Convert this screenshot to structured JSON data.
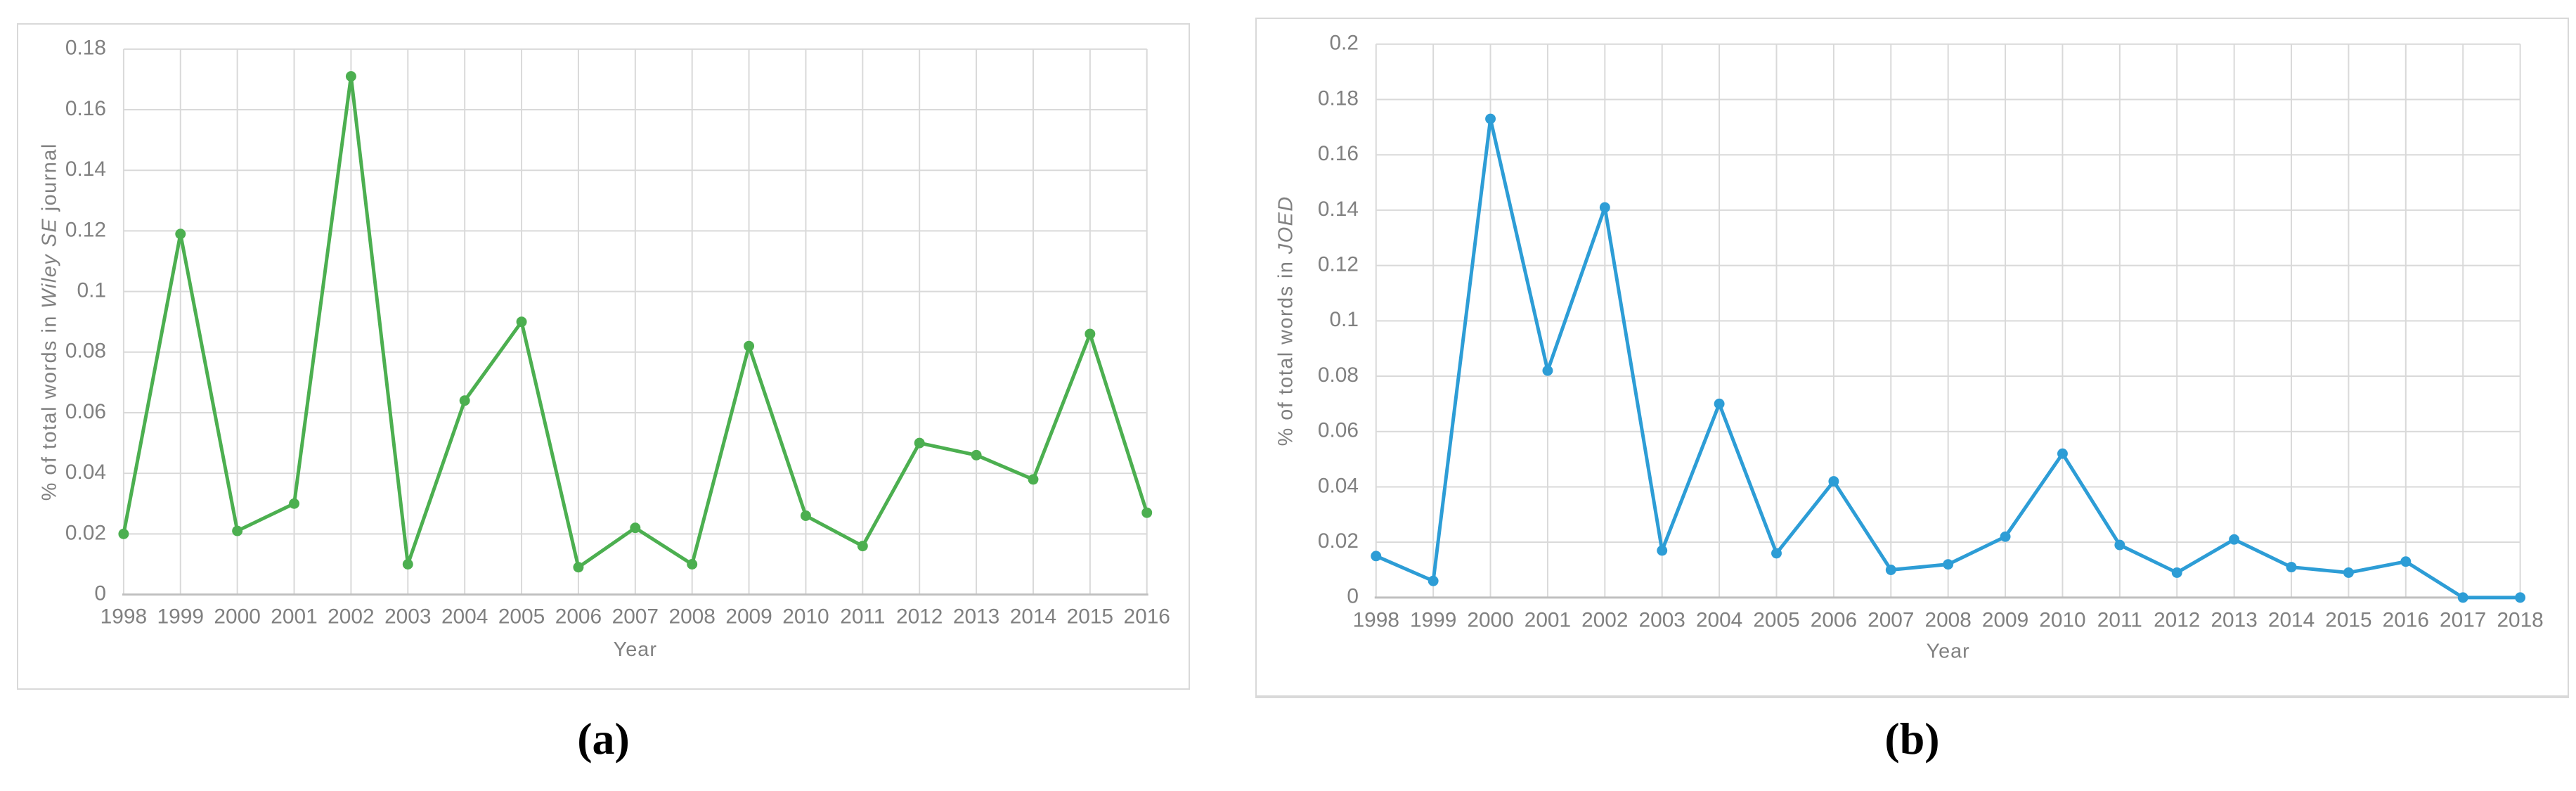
{
  "figure": {
    "captions": {
      "a": "(a)",
      "b": "(b)"
    }
  },
  "style": {
    "background": "#FFFFFF",
    "panel_border_color": "#D9D9D9",
    "grid_color": "#D9D9D9",
    "axis_color": "#BFBFBF",
    "label_color": "#808080",
    "green_series": "#4CAF50",
    "blue_series": "#2D9DD6"
  },
  "chart_data": [
    {
      "id": "a",
      "type": "line",
      "title": "",
      "ylabel_parts": {
        "prefix": "% of total words in ",
        "italic": "Wiley SE",
        "suffix": " journal"
      },
      "xlabel": "Year",
      "categories": [
        "1998",
        "1999",
        "2000",
        "2001",
        "2002",
        "2003",
        "2004",
        "2005",
        "2006",
        "2007",
        "2008",
        "2009",
        "2010",
        "2011",
        "2012",
        "2013",
        "2014",
        "2015",
        "2016"
      ],
      "values": [
        0.02,
        0.119,
        0.021,
        0.03,
        0.171,
        0.01,
        0.064,
        0.09,
        0.009,
        0.022,
        0.01,
        0.082,
        0.026,
        0.016,
        0.05,
        0.046,
        0.038,
        0.086,
        0.027
      ],
      "ylim": [
        0,
        0.18
      ],
      "ytick_labels": [
        "0",
        "0.02",
        "0.04",
        "0.06",
        "0.08",
        "0.1",
        "0.12",
        "0.14",
        "0.16",
        "0.18"
      ],
      "line_color": "#4CAF50",
      "marker": "circle",
      "grid": "both",
      "legend": "none"
    },
    {
      "id": "b",
      "type": "line",
      "title": "",
      "ylabel_parts": {
        "prefix": "% of total words in ",
        "italic": "JOED",
        "suffix": ""
      },
      "xlabel": "Year",
      "categories": [
        "1998",
        "1999",
        "2000",
        "2001",
        "2002",
        "2003",
        "2004",
        "2005",
        "2006",
        "2007",
        "2008",
        "2009",
        "2010",
        "2011",
        "2012",
        "2013",
        "2014",
        "2015",
        "2016",
        "2017",
        "2018"
      ],
      "values": [
        0.015,
        0.006,
        0.173,
        0.082,
        0.141,
        0.017,
        0.07,
        0.016,
        0.042,
        0.01,
        0.012,
        0.022,
        0.052,
        0.019,
        0.009,
        0.021,
        0.011,
        0.009,
        0.013,
        0.0,
        0.0
      ],
      "ylim": [
        0,
        0.2
      ],
      "ytick_labels": [
        "0",
        "0.02",
        "0.04",
        "0.06",
        "0.08",
        "0.1",
        "0.12",
        "0.14",
        "0.16",
        "0.18",
        "0.2"
      ],
      "line_color": "#2D9DD6",
      "marker": "circle",
      "grid": "both",
      "legend": "none"
    }
  ]
}
